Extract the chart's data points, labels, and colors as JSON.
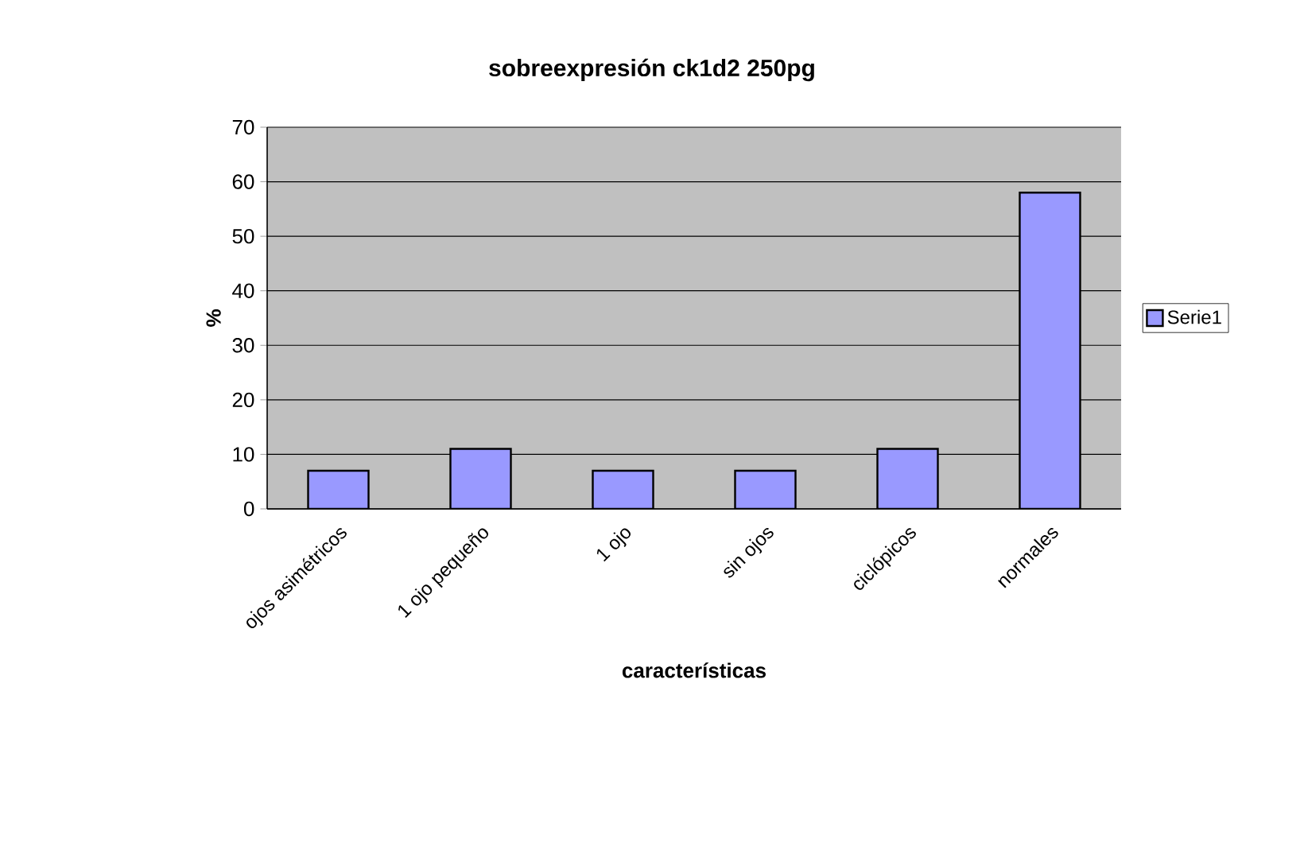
{
  "chart_data": {
    "type": "bar",
    "title": "sobreexpresión ck1d2 250pg",
    "xlabel": "características",
    "ylabel": "%",
    "categories": [
      "ojos asimétricos",
      "1 ojo pequeño",
      "1 ojo",
      "sin ojos",
      "ciclópicos",
      "normales"
    ],
    "series": [
      {
        "name": "Serie1",
        "color": "#9999ff",
        "values": [
          7,
          11,
          7,
          7,
          11,
          58
        ]
      }
    ],
    "ylim": [
      0,
      70
    ],
    "yticks": [
      0,
      10,
      20,
      30,
      40,
      50,
      60,
      70
    ],
    "grid": "y",
    "legend": "right"
  }
}
